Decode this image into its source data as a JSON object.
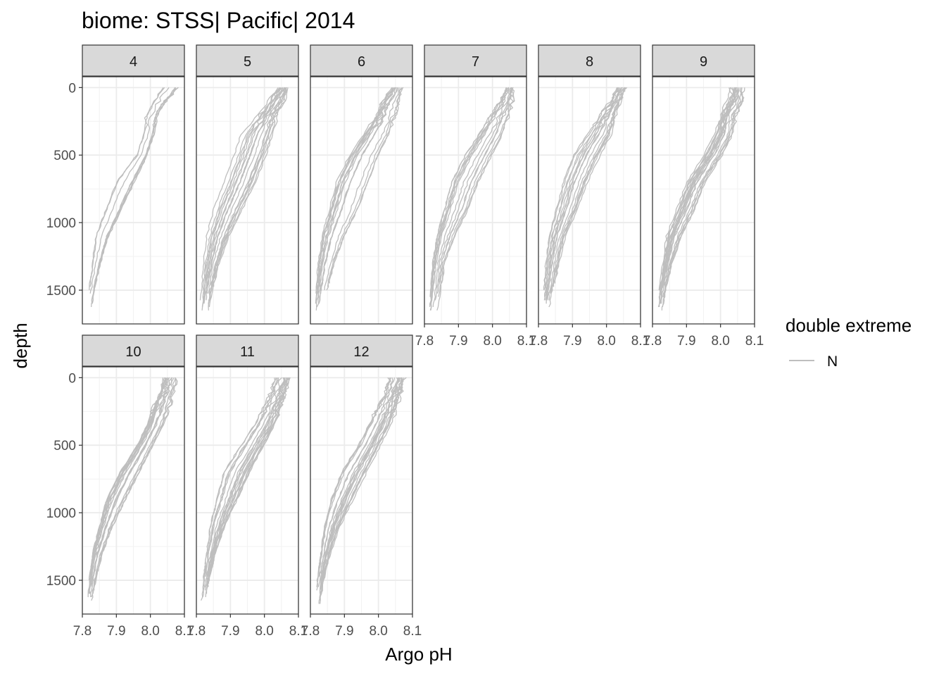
{
  "chart_data": {
    "type": "line",
    "title": "biome: STSS| Pacific| 2014",
    "xlabel": "Argo pH",
    "ylabel": "depth",
    "xlim": [
      7.8,
      8.1
    ],
    "ylim": [
      1750,
      -80
    ],
    "y_reversed": true,
    "x_ticks": [
      7.8,
      7.9,
      8.0,
      8.1
    ],
    "x_tick_labels": [
      "7.8",
      "7.9",
      "8.0",
      "8.1"
    ],
    "y_ticks": [
      0,
      500,
      1000,
      1500
    ],
    "y_tick_labels": [
      "0",
      "500",
      "1000",
      "1500"
    ],
    "grid": true,
    "legend": {
      "title": "double extreme",
      "position": "right",
      "entries": [
        {
          "label": "N",
          "color": "#bebebe"
        }
      ]
    },
    "line_color": "#bebebe",
    "facets": [
      {
        "label": "4",
        "depth": [
          0,
          100,
          200,
          350,
          500,
          700,
          900,
          1100,
          1300,
          1500,
          1650
        ],
        "ph_low": [
          8.04,
          8.01,
          7.99,
          7.98,
          7.96,
          7.9,
          7.87,
          7.84,
          7.83,
          7.82,
          7.815
        ],
        "ph_high": [
          8.09,
          8.06,
          8.03,
          8.02,
          8.0,
          7.97,
          7.93,
          7.89,
          7.86,
          7.84,
          7.83
        ],
        "count": 8
      },
      {
        "label": "5",
        "depth": [
          0,
          100,
          200,
          350,
          500,
          700,
          900,
          1100,
          1300,
          1500,
          1650
        ],
        "ph_low": [
          8.04,
          8.01,
          7.98,
          7.93,
          7.91,
          7.88,
          7.85,
          7.83,
          7.82,
          7.815,
          7.81
        ],
        "ph_high": [
          8.07,
          8.06,
          8.04,
          8.03,
          8.01,
          7.98,
          7.94,
          7.9,
          7.87,
          7.85,
          7.84
        ],
        "count": 18
      },
      {
        "label": "6",
        "depth": [
          0,
          100,
          200,
          350,
          500,
          700,
          900,
          1100,
          1300,
          1500,
          1650
        ],
        "ph_low": [
          8.04,
          8.01,
          7.99,
          7.95,
          7.91,
          7.87,
          7.85,
          7.83,
          7.82,
          7.815,
          7.81
        ],
        "ph_high": [
          8.07,
          8.06,
          8.05,
          8.03,
          8.0,
          7.97,
          7.94,
          7.9,
          7.87,
          7.85,
          7.84
        ],
        "count": 16
      },
      {
        "label": "7",
        "depth": [
          0,
          100,
          200,
          350,
          500,
          700,
          900,
          1100,
          1300,
          1500,
          1650
        ],
        "ph_low": [
          8.04,
          8.02,
          7.99,
          7.95,
          7.91,
          7.87,
          7.85,
          7.83,
          7.82,
          7.815,
          7.81
        ],
        "ph_high": [
          8.06,
          8.06,
          8.05,
          8.03,
          8.0,
          7.96,
          7.93,
          7.89,
          7.86,
          7.85,
          7.84
        ],
        "count": 14
      },
      {
        "label": "8",
        "depth": [
          0,
          100,
          200,
          350,
          500,
          700,
          900,
          1100,
          1300,
          1500,
          1650
        ],
        "ph_low": [
          8.03,
          8.01,
          7.98,
          7.94,
          7.9,
          7.87,
          7.85,
          7.83,
          7.82,
          7.815,
          7.81
        ],
        "ph_high": [
          8.06,
          8.05,
          8.04,
          8.03,
          8.0,
          7.96,
          7.93,
          7.89,
          7.87,
          7.85,
          7.84
        ],
        "count": 16
      },
      {
        "label": "9",
        "depth": [
          0,
          100,
          200,
          350,
          500,
          700,
          900,
          1100,
          1300,
          1500,
          1650
        ],
        "ph_low": [
          8.03,
          8.02,
          8.0,
          7.98,
          7.95,
          7.9,
          7.87,
          7.84,
          7.83,
          7.82,
          7.815
        ],
        "ph_high": [
          8.07,
          8.07,
          8.05,
          8.04,
          8.01,
          7.96,
          7.93,
          7.89,
          7.86,
          7.84,
          7.83
        ],
        "count": 20
      },
      {
        "label": "10",
        "depth": [
          0,
          100,
          200,
          350,
          500,
          700,
          900,
          1100,
          1300,
          1500,
          1650
        ],
        "ph_low": [
          8.04,
          8.03,
          8.01,
          7.99,
          7.96,
          7.91,
          7.87,
          7.85,
          7.83,
          7.82,
          7.815
        ],
        "ph_high": [
          8.08,
          8.07,
          8.06,
          8.04,
          8.01,
          7.97,
          7.93,
          7.89,
          7.86,
          7.84,
          7.83
        ],
        "count": 18
      },
      {
        "label": "11",
        "depth": [
          0,
          100,
          200,
          350,
          500,
          700,
          900,
          1100,
          1300,
          1500,
          1650
        ],
        "ph_low": [
          8.03,
          8.02,
          8.0,
          7.97,
          7.93,
          7.88,
          7.86,
          7.84,
          7.83,
          7.82,
          7.815
        ],
        "ph_high": [
          8.08,
          8.07,
          8.06,
          8.04,
          8.01,
          7.97,
          7.93,
          7.89,
          7.86,
          7.84,
          7.83
        ],
        "count": 18
      },
      {
        "label": "12",
        "depth": [
          0,
          100,
          200,
          350,
          500,
          700,
          900,
          1100,
          1300,
          1500,
          1650
        ],
        "ph_low": [
          8.03,
          8.02,
          8.0,
          7.97,
          7.94,
          7.89,
          7.86,
          7.84,
          7.83,
          7.82,
          7.815
        ],
        "ph_high": [
          8.08,
          8.07,
          8.06,
          8.04,
          8.01,
          7.97,
          7.93,
          7.89,
          7.86,
          7.84,
          7.83
        ],
        "count": 20
      }
    ]
  }
}
